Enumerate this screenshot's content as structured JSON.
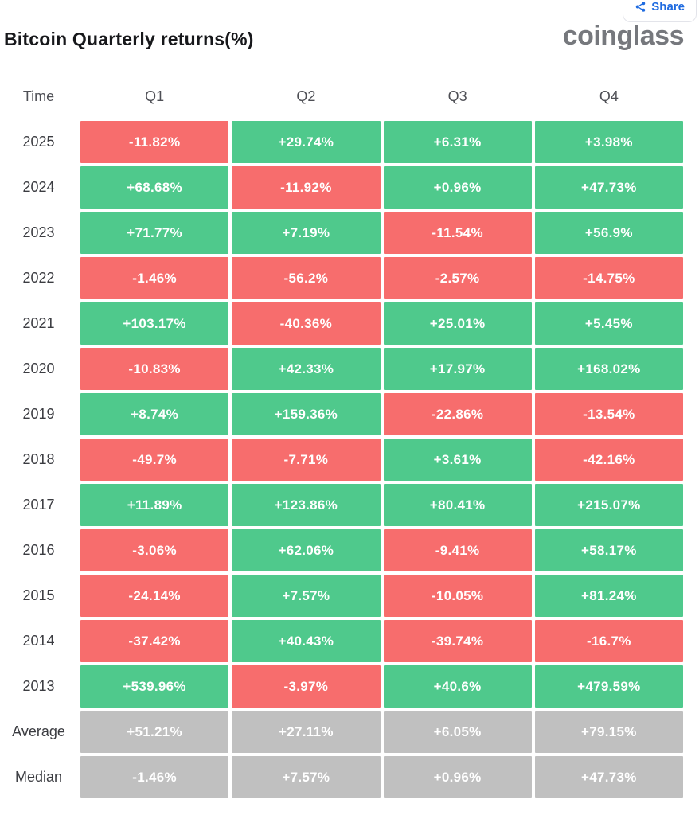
{
  "header": {
    "title": "Bitcoin Quarterly returns(%)",
    "logo_text": "coinglass",
    "share_button_label": "Share"
  },
  "chart_data": {
    "type": "table",
    "title": "Bitcoin Quarterly returns(%)",
    "columns": [
      "Time",
      "Q1",
      "Q2",
      "Q3",
      "Q4"
    ],
    "rows": [
      {
        "label": "2025",
        "kind": "year",
        "values": [
          "-11.82%",
          "+29.74%",
          "+6.31%",
          "+3.98%"
        ]
      },
      {
        "label": "2024",
        "kind": "year",
        "values": [
          "+68.68%",
          "-11.92%",
          "+0.96%",
          "+47.73%"
        ]
      },
      {
        "label": "2023",
        "kind": "year",
        "values": [
          "+71.77%",
          "+7.19%",
          "-11.54%",
          "+56.9%"
        ]
      },
      {
        "label": "2022",
        "kind": "year",
        "values": [
          "-1.46%",
          "-56.2%",
          "-2.57%",
          "-14.75%"
        ]
      },
      {
        "label": "2021",
        "kind": "year",
        "values": [
          "+103.17%",
          "-40.36%",
          "+25.01%",
          "+5.45%"
        ]
      },
      {
        "label": "2020",
        "kind": "year",
        "values": [
          "-10.83%",
          "+42.33%",
          "+17.97%",
          "+168.02%"
        ]
      },
      {
        "label": "2019",
        "kind": "year",
        "values": [
          "+8.74%",
          "+159.36%",
          "-22.86%",
          "-13.54%"
        ]
      },
      {
        "label": "2018",
        "kind": "year",
        "values": [
          "-49.7%",
          "-7.71%",
          "+3.61%",
          "-42.16%"
        ]
      },
      {
        "label": "2017",
        "kind": "year",
        "values": [
          "+11.89%",
          "+123.86%",
          "+80.41%",
          "+215.07%"
        ]
      },
      {
        "label": "2016",
        "kind": "year",
        "values": [
          "-3.06%",
          "+62.06%",
          "-9.41%",
          "+58.17%"
        ]
      },
      {
        "label": "2015",
        "kind": "year",
        "values": [
          "-24.14%",
          "+7.57%",
          "-10.05%",
          "+81.24%"
        ]
      },
      {
        "label": "2014",
        "kind": "year",
        "values": [
          "-37.42%",
          "+40.43%",
          "-39.74%",
          "-16.7%"
        ]
      },
      {
        "label": "2013",
        "kind": "year",
        "values": [
          "+539.96%",
          "-3.97%",
          "+40.6%",
          "+479.59%"
        ]
      },
      {
        "label": "Average",
        "kind": "stat",
        "values": [
          "+51.21%",
          "+27.11%",
          "+6.05%",
          "+79.15%"
        ]
      },
      {
        "label": "Median",
        "kind": "stat",
        "values": [
          "-1.46%",
          "+7.57%",
          "+0.96%",
          "+47.73%"
        ]
      }
    ],
    "cell_color_rule": "green = positive return, red = negative return, gray = summary statistic row"
  },
  "colors": {
    "positive": "#4fc98c",
    "negative": "#f76d6d",
    "stat": "#c0c0c0",
    "title_text": "#17181b",
    "label_text": "#3b3c41",
    "header_text": "#4e4f55",
    "logo_gray": "#76787d",
    "share_blue": "#1f6be0",
    "share_border": "#e3e4ea"
  }
}
